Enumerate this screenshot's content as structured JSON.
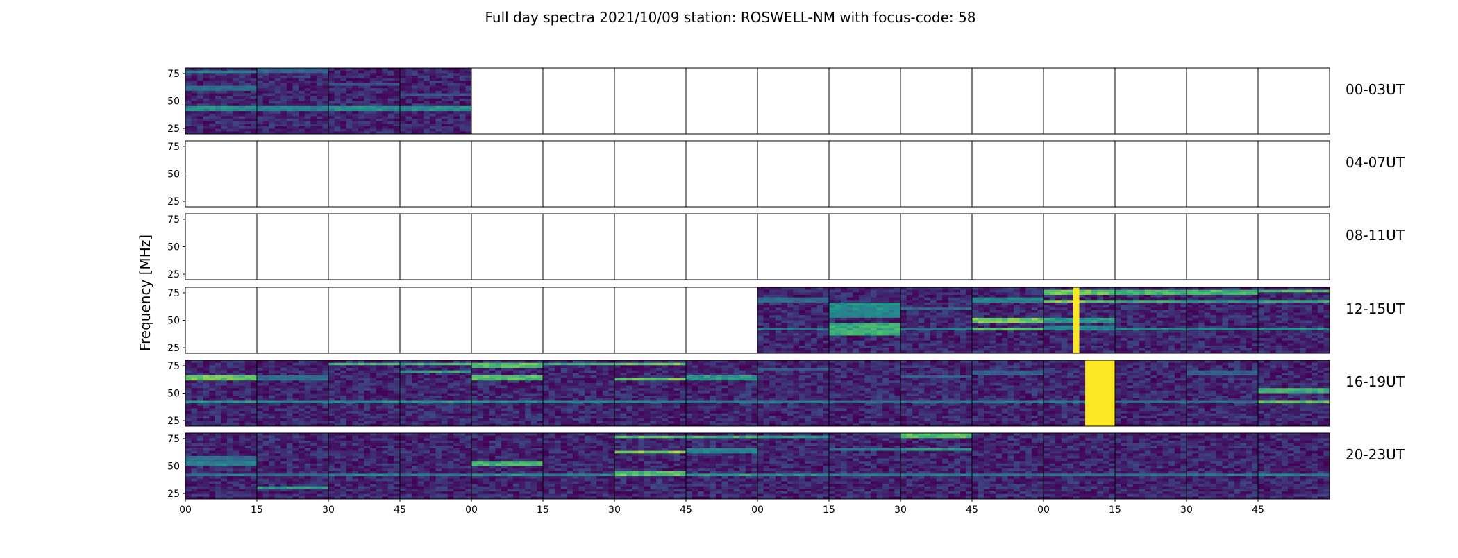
{
  "chart_data": {
    "type": "heatmap",
    "title": "Full day spectra 2021/10/09 station: ROSWELL-NM with focus-code: 58",
    "ylabel": "Frequency [MHz]",
    "xlabel": "",
    "ylim": [
      20,
      80
    ],
    "y_ticks": [
      25,
      50,
      75
    ],
    "x_tick_labels": [
      "00",
      "15",
      "30",
      "45",
      "00",
      "15",
      "30",
      "45",
      "00",
      "15",
      "30",
      "45",
      "00",
      "15",
      "30",
      "45"
    ],
    "colormap": [
      "#440154",
      "#3b528b",
      "#21918c",
      "#5ec962",
      "#fde725"
    ],
    "rows": [
      {
        "label": "00-03UT",
        "panels": [
          {
            "data": true,
            "features": [
              {
                "f": 42,
                "w": 3,
                "v": 0.55
              },
              {
                "f": 62,
                "w": 2,
                "v": 0.4
              },
              {
                "f": 77,
                "w": 2,
                "v": 0.5
              }
            ]
          },
          {
            "data": true,
            "features": [
              {
                "f": 42,
                "w": 3,
                "v": 0.5
              },
              {
                "f": 78,
                "w": 2,
                "v": 0.35
              }
            ]
          },
          {
            "data": true,
            "features": [
              {
                "f": 42,
                "w": 3,
                "v": 0.55
              },
              {
                "f": 65,
                "w": 2,
                "v": 0.3
              }
            ]
          },
          {
            "data": true,
            "features": [
              {
                "f": 42,
                "w": 3,
                "v": 0.55
              },
              {
                "f": 56,
                "w": 2,
                "v": 0.3
              }
            ]
          },
          {
            "data": false
          },
          {
            "data": false
          },
          {
            "data": false
          },
          {
            "data": false
          },
          {
            "data": false
          },
          {
            "data": false
          },
          {
            "data": false
          },
          {
            "data": false
          },
          {
            "data": false
          },
          {
            "data": false
          },
          {
            "data": false
          },
          {
            "data": false
          }
        ]
      },
      {
        "label": "04-07UT",
        "panels": [
          {
            "data": false
          },
          {
            "data": false
          },
          {
            "data": false
          },
          {
            "data": false
          },
          {
            "data": false
          },
          {
            "data": false
          },
          {
            "data": false
          },
          {
            "data": false
          },
          {
            "data": false
          },
          {
            "data": false
          },
          {
            "data": false
          },
          {
            "data": false
          },
          {
            "data": false
          },
          {
            "data": false
          },
          {
            "data": false
          },
          {
            "data": false
          }
        ]
      },
      {
        "label": "08-11UT",
        "panels": [
          {
            "data": false
          },
          {
            "data": false
          },
          {
            "data": false
          },
          {
            "data": false
          },
          {
            "data": false
          },
          {
            "data": false
          },
          {
            "data": false
          },
          {
            "data": false
          },
          {
            "data": false
          },
          {
            "data": false
          },
          {
            "data": false
          },
          {
            "data": false
          },
          {
            "data": false
          },
          {
            "data": false
          },
          {
            "data": false
          },
          {
            "data": false
          }
        ]
      },
      {
        "label": "12-15UT",
        "panels": [
          {
            "data": false
          },
          {
            "data": false
          },
          {
            "data": false
          },
          {
            "data": false
          },
          {
            "data": false
          },
          {
            "data": false
          },
          {
            "data": false
          },
          {
            "data": false
          },
          {
            "data": true,
            "features": [
              {
                "f": 42,
                "w": 2,
                "v": 0.45
              },
              {
                "f": 68,
                "w": 2,
                "v": 0.4
              }
            ]
          },
          {
            "data": true,
            "features": [
              {
                "f": 42,
                "w": 8,
                "v": 0.7
              },
              {
                "f": 56,
                "w": 4,
                "v": 0.5
              },
              {
                "f": 63,
                "w": 4,
                "v": 0.55
              }
            ]
          },
          {
            "data": true,
            "features": [
              {
                "f": 42,
                "w": 2,
                "v": 0.45
              },
              {
                "f": 60,
                "w": 2,
                "v": 0.4
              }
            ]
          },
          {
            "data": true,
            "features": [
              {
                "f": 42,
                "w": 2,
                "v": 0.8
              },
              {
                "f": 50,
                "w": 2,
                "v": 0.85
              },
              {
                "f": 68,
                "w": 2,
                "v": 0.5
              },
              {
                "f": 23,
                "w": 6,
                "v": 0.0
              }
            ]
          },
          {
            "data": true,
            "features": [
              {
                "f": 50,
                "w": 2,
                "v": 0.6
              },
              {
                "f": 67,
                "w": 2,
                "v": 0.9
              },
              {
                "f": 75,
                "w": 2,
                "v": 0.85
              },
              {
                "f": 43,
                "w": 2,
                "v": 0.5
              }
            ],
            "vline": {
              "t": 0.47,
              "v": 1.0
            }
          },
          {
            "data": true,
            "features": [
              {
                "f": 42,
                "w": 2,
                "v": 0.55
              },
              {
                "f": 67,
                "w": 2,
                "v": 0.7
              },
              {
                "f": 76,
                "w": 2,
                "v": 0.75
              }
            ]
          },
          {
            "data": true,
            "features": [
              {
                "f": 42,
                "w": 2,
                "v": 0.5
              },
              {
                "f": 67,
                "w": 2,
                "v": 0.6
              },
              {
                "f": 76,
                "w": 2,
                "v": 0.75
              }
            ]
          },
          {
            "data": true,
            "features": [
              {
                "f": 42,
                "w": 2,
                "v": 0.6
              },
              {
                "f": 67,
                "w": 2,
                "v": 0.7
              },
              {
                "f": 77,
                "w": 2,
                "v": 0.8
              }
            ]
          }
        ]
      },
      {
        "label": "16-19UT",
        "panels": [
          {
            "data": true,
            "features": [
              {
                "f": 42,
                "w": 2,
                "v": 0.6
              },
              {
                "f": 64,
                "w": 2,
                "v": 0.85
              }
            ]
          },
          {
            "data": true,
            "features": [
              {
                "f": 42,
                "w": 2,
                "v": 0.5
              },
              {
                "f": 64,
                "w": 2,
                "v": 0.4
              }
            ]
          },
          {
            "data": true,
            "features": [
              {
                "f": 42,
                "w": 2,
                "v": 0.55
              },
              {
                "f": 77,
                "w": 2,
                "v": 0.7
              }
            ]
          },
          {
            "data": true,
            "features": [
              {
                "f": 42,
                "w": 2,
                "v": 0.6
              },
              {
                "f": 70,
                "w": 2,
                "v": 0.65
              },
              {
                "f": 77,
                "w": 2,
                "v": 0.7
              }
            ]
          },
          {
            "data": true,
            "features": [
              {
                "f": 42,
                "w": 2,
                "v": 0.55
              },
              {
                "f": 64,
                "w": 2,
                "v": 0.8
              },
              {
                "f": 76,
                "w": 2,
                "v": 0.8
              }
            ]
          },
          {
            "data": true,
            "features": [
              {
                "f": 42,
                "w": 2,
                "v": 0.5
              },
              {
                "f": 77,
                "w": 2,
                "v": 0.65
              }
            ]
          },
          {
            "data": true,
            "features": [
              {
                "f": 42,
                "w": 2,
                "v": 0.5
              },
              {
                "f": 63,
                "w": 2,
                "v": 0.9
              },
              {
                "f": 77,
                "w": 2,
                "v": 0.85
              }
            ]
          },
          {
            "data": true,
            "features": [
              {
                "f": 42,
                "w": 2,
                "v": 0.45
              },
              {
                "f": 64,
                "w": 2,
                "v": 0.6
              }
            ]
          },
          {
            "data": true,
            "features": [
              {
                "f": 42,
                "w": 2,
                "v": 0.45
              },
              {
                "f": 72,
                "w": 2,
                "v": 0.35
              }
            ]
          },
          {
            "data": true,
            "features": [
              {
                "f": 42,
                "w": 2,
                "v": 0.4
              }
            ]
          },
          {
            "data": true,
            "features": [
              {
                "f": 42,
                "w": 2,
                "v": 0.45
              },
              {
                "f": 65,
                "w": 2,
                "v": 0.35
              }
            ]
          },
          {
            "data": true,
            "features": [
              {
                "f": 42,
                "w": 2,
                "v": 0.45
              },
              {
                "f": 68,
                "w": 2,
                "v": 0.35
              }
            ]
          },
          {
            "data": true,
            "features": [
              {
                "f": 42,
                "w": 2,
                "v": 0.45
              }
            ],
            "block": {
              "t0": 0.6,
              "t1": 1.0,
              "v": 1.0
            }
          },
          {
            "data": true,
            "features": [
              {
                "f": 42,
                "w": 2,
                "v": 0.4
              }
            ]
          },
          {
            "data": true,
            "features": [
              {
                "f": 42,
                "w": 2,
                "v": 0.4
              },
              {
                "f": 68,
                "w": 2,
                "v": 0.35
              }
            ]
          },
          {
            "data": true,
            "features": [
              {
                "f": 42,
                "w": 2,
                "v": 0.85
              },
              {
                "f": 52,
                "w": 2,
                "v": 0.7
              }
            ]
          }
        ]
      },
      {
        "label": "20-23UT",
        "panels": [
          {
            "data": true,
            "features": [
              {
                "f": 42,
                "w": 2,
                "v": 0.45
              },
              {
                "f": 52,
                "w": 2,
                "v": 0.5
              },
              {
                "f": 57,
                "w": 2,
                "v": 0.4
              }
            ]
          },
          {
            "data": true,
            "features": [
              {
                "f": 42,
                "w": 2,
                "v": 0.4
              },
              {
                "f": 30,
                "w": 2,
                "v": 0.6
              }
            ]
          },
          {
            "data": true,
            "features": [
              {
                "f": 42,
                "w": 2,
                "v": 0.5
              }
            ]
          },
          {
            "data": true,
            "features": [
              {
                "f": 42,
                "w": 2,
                "v": 0.45
              }
            ]
          },
          {
            "data": true,
            "features": [
              {
                "f": 53,
                "w": 3,
                "v": 0.75
              },
              {
                "f": 42,
                "w": 2,
                "v": 0.55
              }
            ]
          },
          {
            "data": true,
            "features": [
              {
                "f": 42,
                "w": 2,
                "v": 0.5
              }
            ]
          },
          {
            "data": true,
            "features": [
              {
                "f": 43,
                "w": 2,
                "v": 0.8
              },
              {
                "f": 63,
                "w": 2,
                "v": 0.9
              },
              {
                "f": 77,
                "w": 2,
                "v": 0.8
              }
            ]
          },
          {
            "data": true,
            "features": [
              {
                "f": 42,
                "w": 2,
                "v": 0.6
              },
              {
                "f": 64,
                "w": 2,
                "v": 0.5
              },
              {
                "f": 77,
                "w": 2,
                "v": 0.7
              }
            ]
          },
          {
            "data": true,
            "features": [
              {
                "f": 42,
                "w": 2,
                "v": 0.55
              },
              {
                "f": 77,
                "w": 2,
                "v": 0.6
              }
            ]
          },
          {
            "data": true,
            "features": [
              {
                "f": 42,
                "w": 2,
                "v": 0.5
              },
              {
                "f": 65,
                "w": 2,
                "v": 0.45
              }
            ]
          },
          {
            "data": true,
            "features": [
              {
                "f": 42,
                "w": 2,
                "v": 0.5
              },
              {
                "f": 65,
                "w": 2,
                "v": 0.6
              },
              {
                "f": 78,
                "w": 2,
                "v": 0.8
              }
            ]
          },
          {
            "data": true,
            "features": [
              {
                "f": 42,
                "w": 2,
                "v": 0.45
              }
            ]
          },
          {
            "data": true,
            "features": [
              {
                "f": 42,
                "w": 2,
                "v": 0.45
              }
            ]
          },
          {
            "data": true,
            "features": [
              {
                "f": 42,
                "w": 2,
                "v": 0.45
              }
            ]
          },
          {
            "data": true,
            "features": [
              {
                "f": 42,
                "w": 2,
                "v": 0.45
              }
            ]
          },
          {
            "data": true,
            "features": [
              {
                "f": 42,
                "w": 2,
                "v": 0.5
              }
            ]
          }
        ]
      }
    ]
  }
}
